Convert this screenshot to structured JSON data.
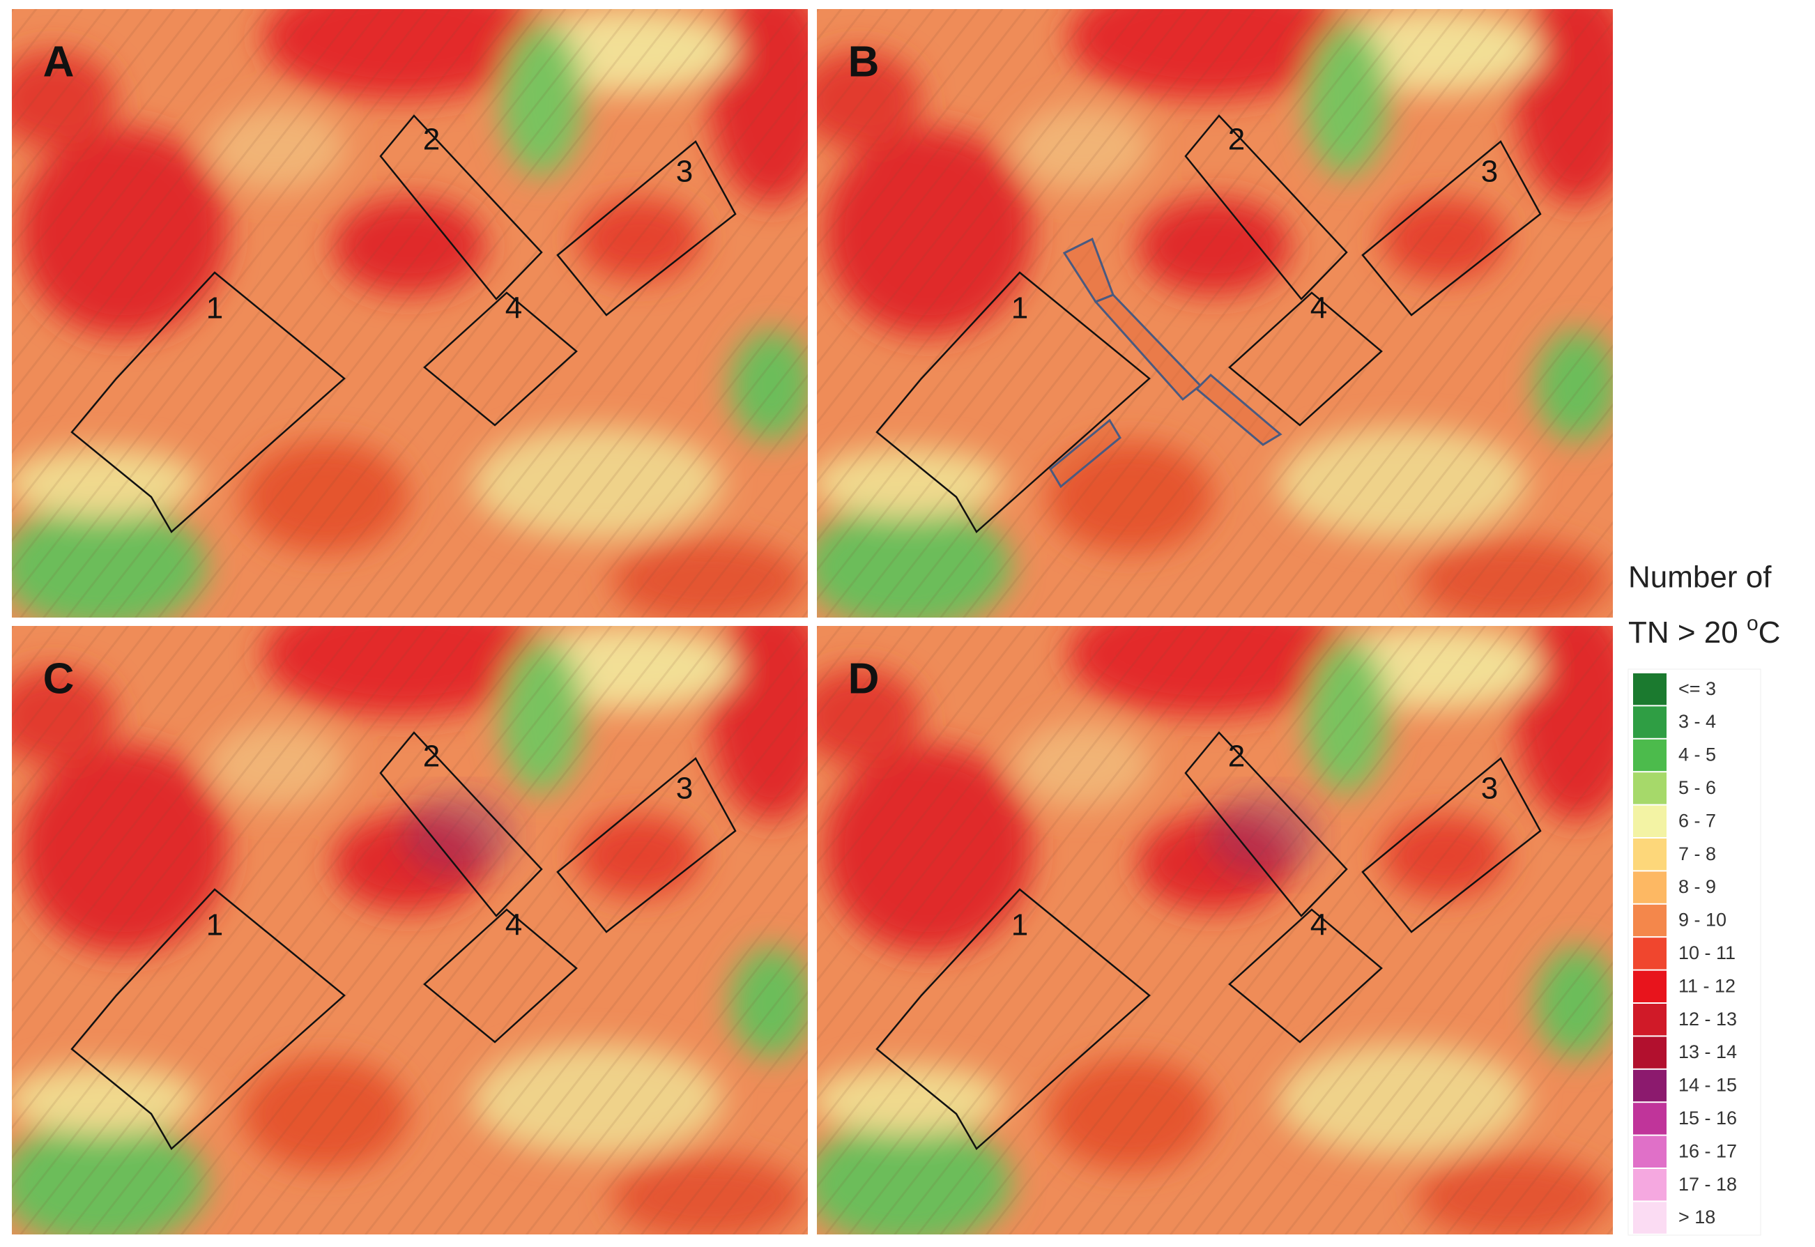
{
  "panels": [
    {
      "label": "A",
      "zones": [
        "1",
        "2",
        "3",
        "4"
      ]
    },
    {
      "label": "B",
      "zones": [
        "1",
        "2",
        "3",
        "4"
      ]
    },
    {
      "label": "C",
      "zones": [
        "1",
        "2",
        "3",
        "4"
      ]
    },
    {
      "label": "D",
      "zones": [
        "1",
        "2",
        "3",
        "4"
      ]
    }
  ],
  "legend": {
    "title_line1": "Number of",
    "title_line2": {
      "text": "TN > 20 ",
      "superscript": "o",
      "unit": "C"
    },
    "items": [
      {
        "label": "<= 3",
        "color": "#1b7a2f"
      },
      {
        "label": "3 - 4",
        "color": "#2f9e44"
      },
      {
        "label": "4 - 5",
        "color": "#4cbb4c"
      },
      {
        "label": "5 - 6",
        "color": "#a6d96a"
      },
      {
        "label": "6 - 7",
        "color": "#f3f3a4"
      },
      {
        "label": "7 - 8",
        "color": "#fdd77a"
      },
      {
        "label": "8 - 9",
        "color": "#fdb863"
      },
      {
        "label": "9 - 10",
        "color": "#f4874b"
      },
      {
        "label": "10 - 11",
        "color": "#f0462e"
      },
      {
        "label": "11 - 12",
        "color": "#e8141c"
      },
      {
        "label": "12 - 13",
        "color": "#d01a28"
      },
      {
        "label": "13 - 14",
        "color": "#b2102e"
      },
      {
        "label": "14 - 15",
        "color": "#8c1a6e"
      },
      {
        "label": "15 - 16",
        "color": "#c0349a"
      },
      {
        "label": "16 - 17",
        "color": "#e070c8"
      },
      {
        "label": "17 - 18",
        "color": "#f5a8e0"
      },
      {
        "label": "> 18",
        "color": "#fbdcf3"
      }
    ]
  }
}
